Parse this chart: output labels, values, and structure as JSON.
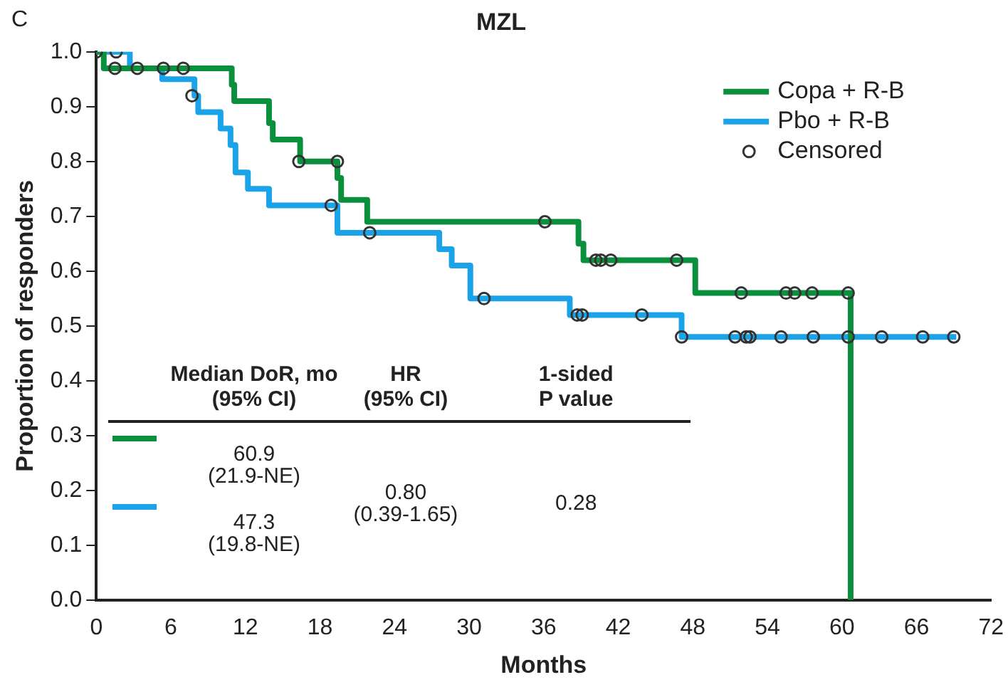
{
  "chart_data": {
    "type": "step",
    "title": "MZL",
    "xlabel": "Months",
    "ylabel": "Proportion of responders",
    "xlim": [
      0,
      72
    ],
    "xticks": [
      0,
      6,
      12,
      18,
      24,
      30,
      36,
      42,
      48,
      54,
      60,
      66,
      72
    ],
    "ylim": [
      0,
      1
    ],
    "yticks": [
      {
        "value": 0,
        "label": "0.0"
      },
      {
        "value": 0.1,
        "label": "0.1"
      },
      {
        "value": 0.2,
        "label": "0.2"
      },
      {
        "value": 0.3,
        "label": "0.3"
      },
      {
        "value": 0.4,
        "label": "0.4"
      },
      {
        "value": 0.5,
        "label": "0.5"
      },
      {
        "value": 0.6,
        "label": "0.6"
      },
      {
        "value": 0.7,
        "label": "0.7"
      },
      {
        "value": 0.8,
        "label": "0.8"
      },
      {
        "value": 0.9,
        "label": "0.9"
      },
      {
        "value": 1,
        "label": "1.0"
      }
    ],
    "grid": false,
    "legend": "top right",
    "annotations": [
      "C",
      "Median DoR, mo",
      "(95% CI)",
      "HR",
      "(95% CI)",
      "1-sided",
      "P value",
      "60.9",
      "(21.9-NE)",
      "47.3",
      "(19.8-NE)",
      "0.80",
      "(0.39-1.65)",
      "0.28"
    ],
    "series": [
      {
        "name": "Copa + R-B",
        "color": "#0a8f3c",
        "x": [
          0,
          0.6,
          10.9,
          11.1,
          13.9,
          14.2,
          16.4,
          19.4,
          19.7,
          21.8,
          38.8,
          39.2,
          48.2,
          60.7
        ],
        "values": [
          1.0,
          0.97,
          0.94,
          0.91,
          0.87,
          0.84,
          0.8,
          0.77,
          0.73,
          0.69,
          0.65,
          0.62,
          0.56,
          0
        ]
      },
      {
        "name": "Pbo + R-B",
        "color": "#1aa3e8",
        "x": [
          0,
          2.7,
          5.3,
          7.9,
          8.2,
          10.0,
          10.8,
          11.2,
          12.2,
          13.9,
          19.4,
          27.6,
          28.6,
          30.1,
          38.1,
          47.1,
          69.2
        ],
        "values": [
          1.0,
          0.97,
          0.95,
          0.92,
          0.89,
          0.86,
          0.83,
          0.78,
          0.75,
          0.72,
          0.67,
          0.64,
          0.61,
          0.55,
          0.52,
          0.48,
          0.48
        ]
      },
      {
        "name": "Censored",
        "type": "scatter",
        "color": "#333333",
        "marker": "circle",
        "x": [
          0,
          1.5,
          5.4,
          7.0,
          16.3,
          19.4,
          36.1,
          40.2,
          40.6,
          41.4,
          46.7,
          51.9,
          55.5,
          56.2,
          57.6,
          60.5,
          1.6,
          3.3,
          7.7,
          18.9,
          22,
          31.2,
          38.7,
          39.1,
          43.9,
          47.1,
          51.4,
          52.3,
          52.6,
          55.1,
          57.7,
          60.5,
          63.2,
          66.5,
          69
        ],
        "values": [
          1.0,
          0.97,
          0.97,
          0.97,
          0.8,
          0.8,
          0.69,
          0.62,
          0.62,
          0.62,
          0.62,
          0.56,
          0.56,
          0.56,
          0.56,
          0.56,
          1.0,
          0.97,
          0.92,
          0.72,
          0.67,
          0.55,
          0.52,
          0.52,
          0.52,
          0.48,
          0.48,
          0.48,
          0.48,
          0.48,
          0.48,
          0.48,
          0.48,
          0.48,
          0.48
        ]
      }
    ]
  }
}
